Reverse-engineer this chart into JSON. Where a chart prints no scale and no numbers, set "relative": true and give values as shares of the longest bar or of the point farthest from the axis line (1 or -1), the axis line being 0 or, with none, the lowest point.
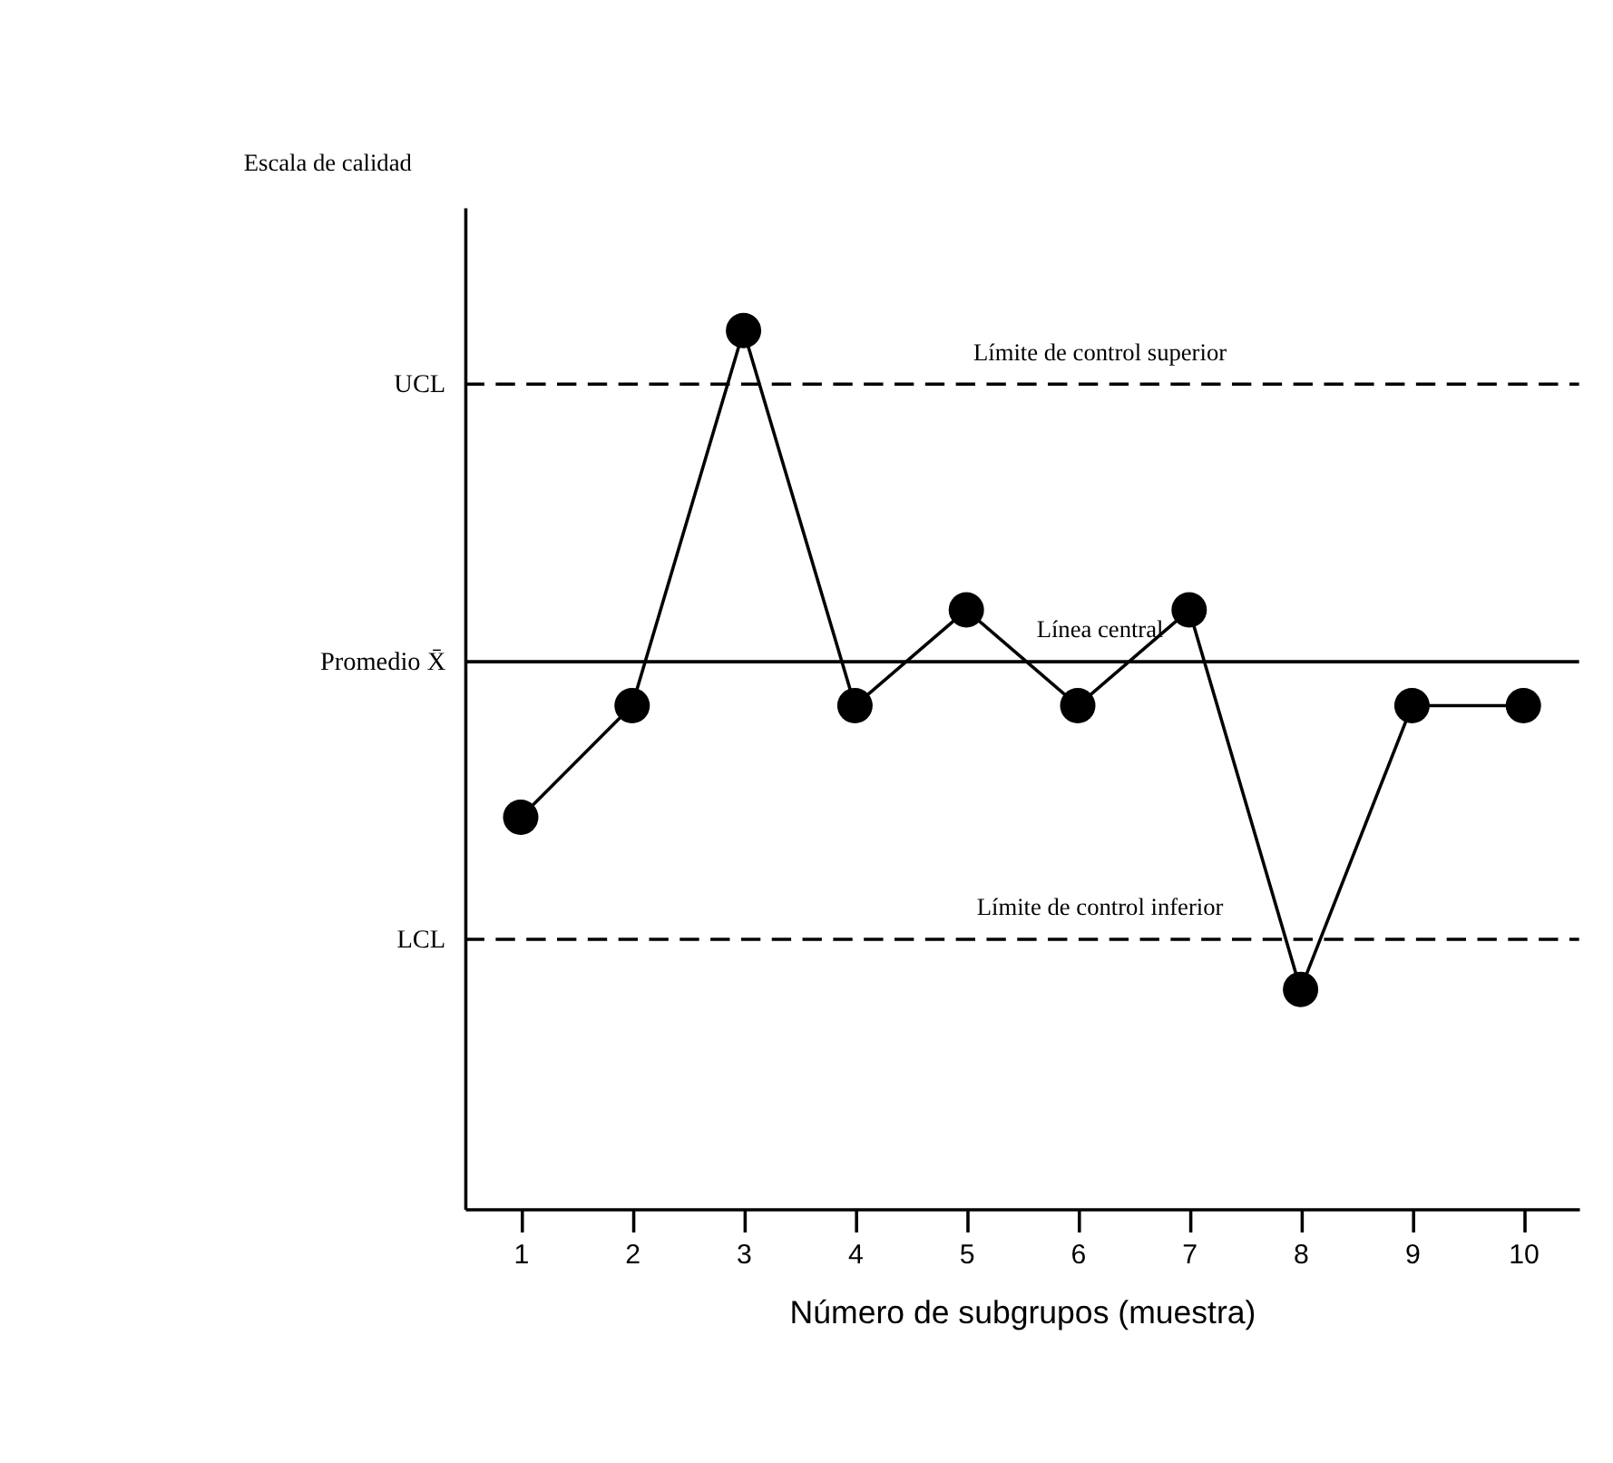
{
  "chart_data": {
    "type": "line",
    "relative": true,
    "xlabel": "Número de subgrupos (muestra)",
    "categories": [
      "1",
      "2",
      "3",
      "4",
      "5",
      "6",
      "7",
      "8",
      "9",
      "10"
    ],
    "series": [
      {
        "color": "#000000",
        "values": [
          0.446,
          0.573,
          1,
          0.573,
          0.682,
          0.573,
          0.682,
          0.25,
          0.573,
          0.573
        ]
      }
    ],
    "marker": "circle",
    "line_style": "solid",
    "grid": false,
    "ref_lines": [
      {
        "axis": "y",
        "value": 0.939,
        "label": "UCL",
        "line_style": "dashed",
        "color": "#000000"
      },
      {
        "axis": "y",
        "value": 0.623,
        "label": "Promedio X̄",
        "line_style": "solid",
        "color": "#000000"
      },
      {
        "axis": "y",
        "value": 0.307,
        "label": "LCL",
        "line_style": "dashed",
        "color": "#000000"
      }
    ],
    "annotations": [
      "Escala de calidad",
      {
        "text": "Límite de control superior",
        "y": 0.939
      },
      {
        "text": "Línea central",
        "y": 0.623
      },
      {
        "text": "Límite de control inferior",
        "y": 0.307
      }
    ]
  }
}
